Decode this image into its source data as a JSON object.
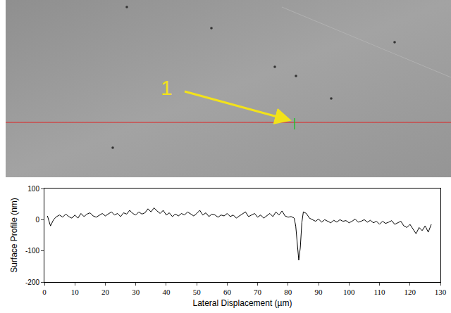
{
  "chart_data": {
    "type": "line",
    "x_label": "Lateral Displacement (µm)",
    "y_label": "Surface Profile (nm)",
    "annotations": [
      "1"
    ],
    "color": "#000000",
    "grid": false,
    "x": [
      1,
      2,
      3,
      4,
      5,
      6,
      7,
      8,
      9,
      10,
      11,
      12,
      13,
      14,
      15,
      16,
      17,
      18,
      19,
      20,
      21,
      22,
      23,
      24,
      25,
      26,
      27,
      28,
      29,
      30,
      31,
      32,
      33,
      34,
      35,
      36,
      37,
      38,
      39,
      40,
      41,
      42,
      43,
      44,
      45,
      46,
      47,
      48,
      49,
      50,
      51,
      52,
      53,
      54,
      55,
      56,
      57,
      58,
      59,
      60,
      61,
      62,
      63,
      64,
      65,
      66,
      67,
      68,
      69,
      70,
      71,
      72,
      73,
      74,
      75,
      76,
      77,
      78,
      79,
      80,
      81,
      82,
      82.5,
      83,
      83.5,
      84,
      84.5,
      85,
      86,
      87,
      88,
      89,
      90,
      91,
      92,
      93,
      94,
      95,
      96,
      97,
      98,
      99,
      100,
      101,
      102,
      103,
      104,
      105,
      106,
      107,
      108,
      109,
      110,
      111,
      112,
      113,
      114,
      115,
      116,
      117,
      118,
      119,
      120,
      121,
      122,
      123,
      124,
      125,
      126,
      127
    ],
    "values": [
      12,
      -20,
      0,
      10,
      15,
      8,
      18,
      10,
      5,
      15,
      5,
      20,
      10,
      18,
      22,
      12,
      8,
      15,
      20,
      12,
      18,
      25,
      15,
      20,
      10,
      22,
      18,
      30,
      20,
      15,
      25,
      18,
      22,
      35,
      25,
      38,
      28,
      20,
      30,
      15,
      22,
      10,
      18,
      12,
      20,
      15,
      25,
      18,
      12,
      20,
      30,
      15,
      22,
      10,
      18,
      15,
      8,
      15,
      12,
      20,
      10,
      15,
      5,
      12,
      18,
      25,
      10,
      15,
      20,
      8,
      15,
      5,
      12,
      20,
      10,
      25,
      15,
      28,
      12,
      8,
      10,
      5,
      -20,
      -80,
      -130,
      -90,
      -10,
      25,
      20,
      5,
      0,
      -5,
      2,
      -8,
      0,
      -5,
      -10,
      -2,
      -8,
      0,
      -5,
      -3,
      -10,
      -5,
      2,
      -8,
      -5,
      0,
      -8,
      -2,
      -10,
      -5,
      -15,
      -5,
      -12,
      -8,
      -3,
      -15,
      -10,
      -5,
      -20,
      -25,
      -15,
      -30,
      -45,
      -25,
      -35,
      -20,
      -40,
      -15
    ],
    "xlim": [
      0,
      130
    ],
    "xticks": [
      0,
      10,
      20,
      30,
      40,
      50,
      60,
      70,
      80,
      90,
      100,
      110,
      120,
      130
    ],
    "ylim": [
      -200,
      100
    ],
    "yticks": [
      -200,
      -100,
      0,
      100
    ]
  }
}
